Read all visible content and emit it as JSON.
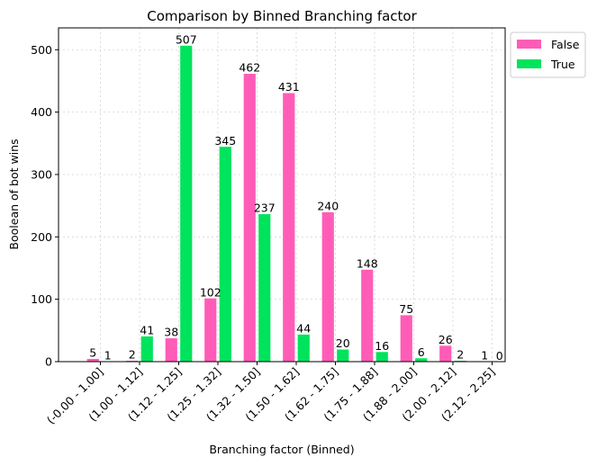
{
  "chart_data": {
    "type": "bar",
    "title": "Comparison by Binned Branching factor",
    "xlabel": "Branching factor (Binned)",
    "ylabel": "Boolean of bot wins",
    "categories": [
      "(-0.00 - 1.00]",
      "(1.00 - 1.12]",
      "(1.12 - 1.25]",
      "(1.25 - 1.32]",
      "(1.32 - 1.50]",
      "(1.50 - 1.62]",
      "(1.62 - 1.75]",
      "(1.75 - 1.88]",
      "(1.88 - 2.00]",
      "(2.00 - 2.12]",
      "(2.12 - 2.25]"
    ],
    "series": [
      {
        "name": "False",
        "color": "#ff5cb8",
        "values": [
          5,
          2,
          38,
          102,
          462,
          431,
          240,
          148,
          75,
          26,
          1
        ]
      },
      {
        "name": "True",
        "color": "#00e35c",
        "values": [
          1,
          41,
          507,
          345,
          237,
          44,
          20,
          16,
          6,
          2,
          0
        ]
      }
    ],
    "ylim": [
      0,
      535
    ],
    "yticks": [
      0,
      100,
      200,
      300,
      400,
      500
    ],
    "grid": true,
    "legend": "upper-right-outside"
  }
}
